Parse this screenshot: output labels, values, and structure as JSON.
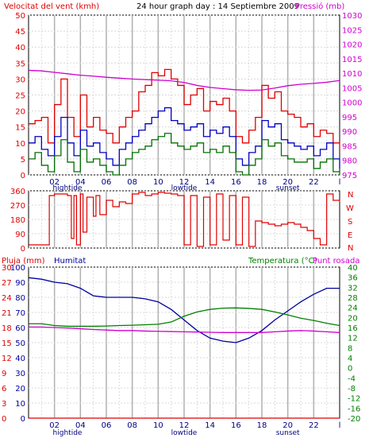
{
  "header": {
    "wind_title": "Velocitat del vent (kmh)",
    "graph_title": "24 hour graph day : 14 Septiembre 2009",
    "pressure_title": "Pressió (mb)"
  },
  "lower_header": {
    "rain_title": "Pluja (mm)",
    "humidity_title": "Humitat",
    "temp_title": "Temperatura (°C)",
    "dew_title": "Punt rosada"
  },
  "colors": {
    "wind_gust": "#e00000",
    "wind_avg": "#0000c0",
    "wind_low": "#007000",
    "pressure": "#d000d0",
    "direction": "#e00000",
    "humidity": "#0000a0",
    "temperature": "#008000",
    "dew": "#d000d0",
    "rain": "#e00000",
    "grid": "#c0c0c0"
  },
  "chart_data": [
    {
      "type": "line",
      "title": "Velocitat del vent (kmh) / Pressió (mb)",
      "x_tick_labels": [
        "02",
        "04",
        "06",
        "08",
        "10",
        "12",
        "14",
        "16",
        "18",
        "20",
        "22",
        "l"
      ],
      "x_annotations": [
        {
          "label": "hightide",
          "hour": 3
        },
        {
          "label": "lowtide",
          "hour": 12
        },
        {
          "label": "sunset",
          "hour": 20
        }
      ],
      "y_left": {
        "label": "Velocitat del vent (kmh)",
        "ticks": [
          0,
          5,
          10,
          15,
          20,
          25,
          30,
          35,
          40,
          45,
          50
        ],
        "range": [
          0,
          50
        ]
      },
      "y_right": {
        "label": "Pressió (mb)",
        "ticks": [
          975,
          980,
          985,
          990,
          995,
          1000,
          1005,
          1010,
          1015,
          1020,
          1025,
          1030
        ],
        "range": [
          975,
          1030
        ]
      },
      "x_range_hours": [
        0,
        24
      ],
      "series": [
        {
          "name": "gust",
          "axis": "left",
          "color": "#e00000",
          "x": [
            0,
            0.5,
            1,
            1.5,
            2,
            2.5,
            3,
            3.5,
            4,
            4.5,
            5,
            5.5,
            6,
            6.5,
            7,
            7.5,
            8,
            8.5,
            9,
            9.5,
            10,
            10.5,
            11,
            11.5,
            12,
            12.5,
            13,
            13.5,
            14,
            14.5,
            15,
            15.5,
            16,
            16.5,
            17,
            17.5,
            18,
            18.5,
            19,
            19.5,
            20,
            20.5,
            21,
            21.5,
            22,
            22.5,
            23,
            23.5,
            24
          ],
          "y": [
            16,
            17,
            18,
            10,
            22,
            30,
            18,
            12,
            25,
            15,
            18,
            14,
            13,
            10,
            15,
            18,
            20,
            26,
            28,
            32,
            31,
            33,
            30,
            28,
            22,
            25,
            27,
            20,
            23,
            22,
            24,
            20,
            12,
            10,
            14,
            18,
            28,
            24,
            26,
            20,
            19,
            18,
            15,
            16,
            12,
            14,
            13,
            10,
            8
          ]
        },
        {
          "name": "avg",
          "axis": "left",
          "color": "#0000c0",
          "x": [
            0,
            0.5,
            1,
            1.5,
            2,
            2.5,
            3,
            3.5,
            4,
            4.5,
            5,
            5.5,
            6,
            6.5,
            7,
            7.5,
            8,
            8.5,
            9,
            9.5,
            10,
            10.5,
            11,
            11.5,
            12,
            12.5,
            13,
            13.5,
            14,
            14.5,
            15,
            15.5,
            16,
            16.5,
            17,
            17.5,
            18,
            18.5,
            19,
            19.5,
            20,
            20.5,
            21,
            21.5,
            22,
            22.5,
            23,
            23.5,
            24
          ],
          "y": [
            10,
            12,
            8,
            6,
            12,
            18,
            10,
            6,
            14,
            9,
            10,
            7,
            5,
            3,
            8,
            10,
            12,
            14,
            16,
            18,
            20,
            21,
            17,
            16,
            14,
            15,
            16,
            12,
            14,
            13,
            15,
            12,
            5,
            3,
            7,
            9,
            17,
            15,
            16,
            11,
            10,
            9,
            8,
            9,
            6,
            8,
            10,
            5,
            2
          ]
        },
        {
          "name": "low",
          "axis": "left",
          "color": "#007000",
          "x": [
            0,
            0.5,
            1,
            1.5,
            2,
            2.5,
            3,
            3.5,
            4,
            4.5,
            5,
            5.5,
            6,
            6.5,
            7,
            7.5,
            8,
            8.5,
            9,
            9.5,
            10,
            10.5,
            11,
            11.5,
            12,
            12.5,
            13,
            13.5,
            14,
            14.5,
            15,
            15.5,
            16,
            16.5,
            17,
            17.5,
            18,
            18.5,
            19,
            19.5,
            20,
            20.5,
            21,
            21.5,
            22,
            22.5,
            23,
            23.5,
            24
          ],
          "y": [
            5,
            7,
            3,
            1,
            6,
            11,
            4,
            1,
            8,
            4,
            5,
            3,
            1,
            0,
            3,
            5,
            7,
            8,
            9,
            11,
            12,
            13,
            10,
            9,
            8,
            9,
            10,
            7,
            8,
            7,
            9,
            7,
            1,
            0,
            3,
            5,
            11,
            9,
            10,
            6,
            5,
            4,
            4,
            5,
            2,
            4,
            5,
            1,
            0
          ]
        },
        {
          "name": "pressure",
          "axis": "right",
          "color": "#d000d0",
          "x": [
            0,
            1,
            2,
            3,
            4,
            5,
            6,
            7,
            8,
            9,
            10,
            11,
            12,
            13,
            14,
            15,
            16,
            17,
            18,
            19,
            20,
            21,
            22,
            23,
            24
          ],
          "y": [
            1011,
            1010.8,
            1010.3,
            1009.8,
            1009.3,
            1009,
            1008.6,
            1008.3,
            1008,
            1007.8,
            1007.6,
            1007.4,
            1006.8,
            1005.8,
            1005.1,
            1004.7,
            1004.3,
            1004.1,
            1004.2,
            1004.9,
            1005.7,
            1006.2,
            1006.5,
            1006.9,
            1007.5
          ]
        }
      ]
    },
    {
      "type": "line",
      "title": "Wind direction",
      "y_left": {
        "ticks": [
          0,
          90,
          180,
          270,
          360
        ],
        "range": [
          0,
          360
        ]
      },
      "y_right_labels": [
        "N",
        "W",
        "S",
        "E",
        "N"
      ],
      "x_range_hours": [
        0,
        24
      ],
      "series": [
        {
          "name": "direction",
          "color": "#e00000",
          "x": [
            0,
            0.5,
            1,
            1.5,
            1.6,
            2,
            2.5,
            3,
            3.3,
            3.5,
            3.7,
            4,
            4.2,
            4.5,
            5,
            5.2,
            5.5,
            6,
            6.5,
            7,
            7.5,
            8,
            8.5,
            9,
            9.5,
            10,
            10.5,
            11,
            11.5,
            12,
            12.5,
            13,
            13.5,
            14,
            14.5,
            15,
            15.5,
            16,
            16.5,
            17,
            17.5,
            18,
            18.5,
            19,
            19.5,
            20,
            20.5,
            21,
            21.5,
            22,
            22.5,
            23,
            23.5,
            24
          ],
          "y": [
            20,
            20,
            20,
            20,
            330,
            340,
            340,
            330,
            60,
            330,
            20,
            340,
            100,
            320,
            200,
            330,
            210,
            300,
            260,
            290,
            280,
            340,
            350,
            330,
            340,
            350,
            345,
            340,
            330,
            20,
            330,
            10,
            320,
            20,
            340,
            50,
            330,
            20,
            320,
            10,
            170,
            160,
            150,
            140,
            150,
            160,
            150,
            130,
            110,
            60,
            20,
            340,
            300,
            290
          ]
        }
      ]
    },
    {
      "type": "line",
      "title": "Pluja (mm) / Humitat / Temperatura (°C) / Punt rosada",
      "y_left_rain": {
        "label": "Pluja (mm)",
        "ticks": [
          0,
          3,
          6,
          9,
          12,
          15,
          18,
          21,
          24,
          27,
          30
        ],
        "range": [
          0,
          30
        ]
      },
      "y_left_hum": {
        "label": "Humitat",
        "ticks": [
          0,
          10,
          20,
          30,
          40,
          50,
          60,
          70,
          80,
          90,
          100
        ],
        "range": [
          0,
          100
        ]
      },
      "y_right": {
        "label": "Temperatura (°C)",
        "ticks": [
          -20,
          -16,
          -12,
          -8,
          -4,
          0,
          4,
          8,
          12,
          16,
          20,
          24,
          28,
          32,
          36,
          40
        ],
        "range": [
          -20,
          40
        ]
      },
      "x_range_hours": [
        0,
        24
      ],
      "series": [
        {
          "name": "Humitat",
          "axis": "hum",
          "color": "#0000a0",
          "x": [
            0,
            1,
            2,
            3,
            4,
            5,
            6,
            7,
            8,
            9,
            10,
            11,
            12,
            13,
            14,
            15,
            16,
            17,
            18,
            19,
            20,
            21,
            22,
            23,
            24
          ],
          "y": [
            93,
            92,
            90,
            89,
            86,
            81,
            80,
            80,
            80,
            79,
            77,
            72,
            65,
            58,
            53,
            51,
            50,
            53,
            58,
            65,
            71,
            77,
            82,
            86,
            86
          ]
        },
        {
          "name": "Temperatura",
          "axis": "temp",
          "color": "#008000",
          "x": [
            0,
            1,
            2,
            3,
            4,
            5,
            6,
            7,
            8,
            9,
            10,
            11,
            12,
            13,
            14,
            15,
            16,
            17,
            18,
            19,
            20,
            21,
            22,
            23,
            24
          ],
          "y": [
            17.5,
            17.5,
            16.8,
            16.5,
            16.5,
            16.5,
            16.6,
            16.8,
            16.9,
            17.1,
            17.3,
            18.2,
            20.5,
            22.2,
            23.2,
            23.7,
            23.8,
            23.6,
            23.2,
            22.2,
            21,
            19.7,
            18.8,
            17.7,
            16.8
          ]
        },
        {
          "name": "Punt rosada",
          "axis": "temp",
          "color": "#d000d0",
          "x": [
            0,
            1,
            2,
            3,
            4,
            5,
            6,
            7,
            8,
            9,
            10,
            11,
            12,
            13,
            14,
            15,
            16,
            17,
            18,
            19,
            20,
            21,
            22,
            23,
            24
          ],
          "y": [
            16.2,
            16.2,
            16,
            15.8,
            15.5,
            15.2,
            15,
            14.8,
            14.8,
            14.6,
            14.5,
            14.4,
            14.3,
            14.2,
            14.1,
            14,
            14,
            14,
            14,
            14.3,
            14.6,
            14.8,
            14.6,
            14.3,
            14
          ]
        },
        {
          "name": "Pluja",
          "axis": "rain",
          "color": "#e00000",
          "x": [
            0,
            24
          ],
          "y": [
            0,
            0
          ]
        }
      ]
    }
  ]
}
